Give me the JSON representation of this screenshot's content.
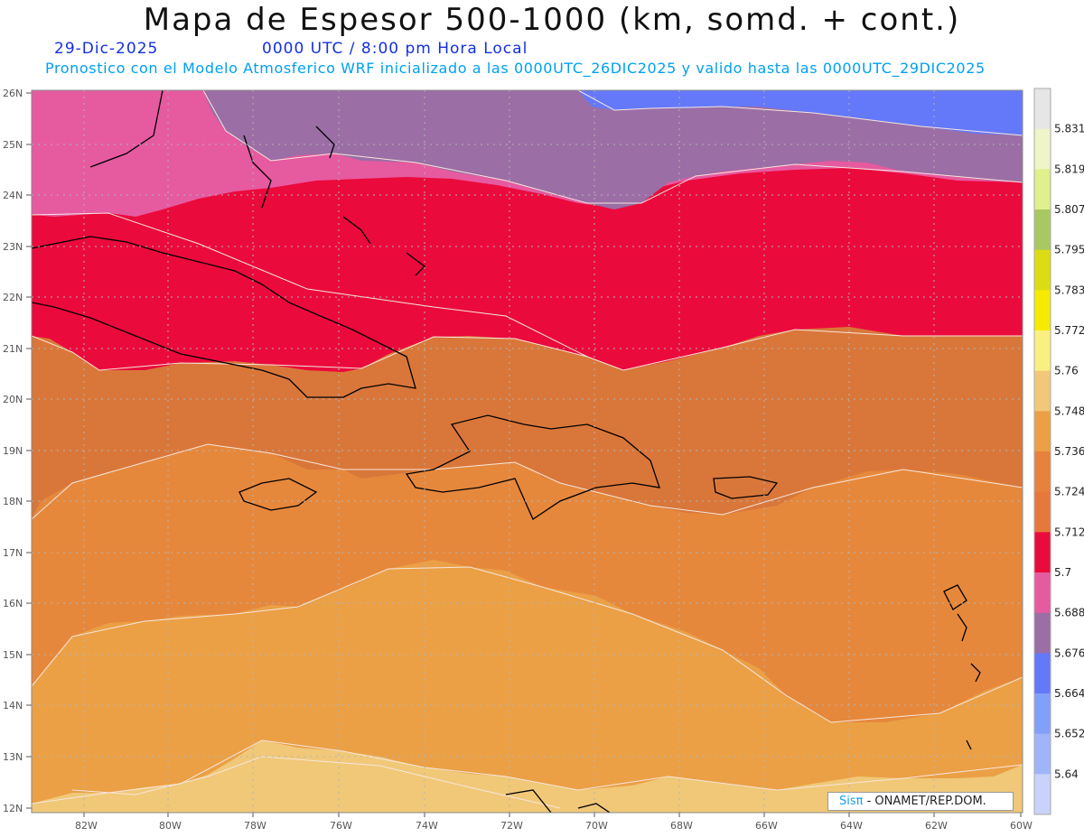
{
  "header": {
    "title": "Mapa de Espesor 500-1000 (km, somd. + cont.)",
    "date": "29-Dic-2025",
    "time": "0000 UTC / 8:00 pm Hora Local",
    "forecast": "Pronostico con el Modelo Atmosferico WRF inicializado a las 0000UTC_26DIC2025 y valido hasta las  0000UTC_29DIC2025"
  },
  "axes": {
    "lat_labels": [
      "26N",
      "25N",
      "24N",
      "23N",
      "22N",
      "21N",
      "20N",
      "19N",
      "18N",
      "17N",
      "16N",
      "15N",
      "14N",
      "13N",
      "12N"
    ],
    "lon_labels": [
      "82W",
      "80W",
      "78W",
      "76W",
      "74W",
      "72W",
      "70W",
      "68W",
      "66W",
      "64W",
      "62W",
      "60W"
    ]
  },
  "colorbar": {
    "levels": [
      "5.831",
      "5.819",
      "5.807",
      "5.795",
      "5.783",
      "5.772",
      "5.76",
      "5.748",
      "5.736",
      "5.724",
      "5.712",
      "5.7",
      "5.688",
      "5.676",
      "5.664",
      "5.652",
      "5.64"
    ],
    "colors": [
      "#e6e6e6",
      "#eff5c8",
      "#dff08c",
      "#a8c864",
      "#dcdc14",
      "#f5eb00",
      "#faf082",
      "#f0c878",
      "#eba046",
      "#e6823c",
      "#e6783c",
      "#eb0a3c",
      "#e65aa0",
      "#9b6ea5",
      "#6478fa",
      "#82a0fa",
      "#a0b4fa",
      "#c8d2fa"
    ]
  },
  "map": {
    "bands": [
      {
        "name": "5.664-5.676",
        "color": "#6478fa"
      },
      {
        "name": "5.676-5.688",
        "color": "#9b6ea5"
      },
      {
        "name": "5.688-5.7",
        "color": "#e65aa0"
      },
      {
        "name": "5.7-5.712",
        "color": "#eb0a3c"
      },
      {
        "name": "5.712-5.724",
        "color": "#db7a3a"
      },
      {
        "name": "5.724-5.736",
        "color": "#e6883c"
      },
      {
        "name": "5.736-5.748",
        "color": "#eba046"
      },
      {
        "name": "5.748-5.76",
        "color": "#f0c878"
      }
    ]
  },
  "credit": {
    "brand": "Sisπ",
    "text": "- ONAMET/REP.DOM."
  }
}
